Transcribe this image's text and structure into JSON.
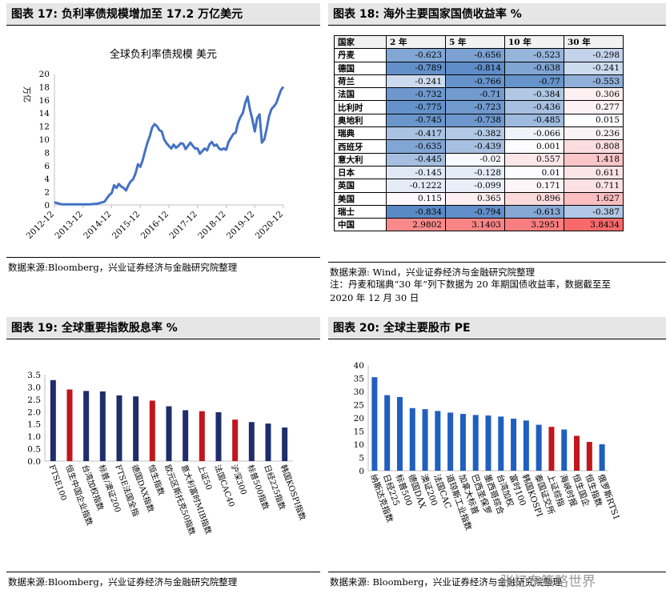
{
  "panels": {
    "p17": {
      "title": "图表 17:  负利率债规模增加至 17.2 万亿美元",
      "source": "数据来源:Bloomberg，兴业证券经济与金融研究院整理"
    },
    "p18": {
      "title": "图表 18:  海外主要国家国债收益率  %",
      "source": "数据来源: Wind，兴业证券经济与金融研究院整理",
      "note1": "注：丹麦和瑞典“30 年”列下数据为 20 年期国债收益率，数据截至至",
      "note2": "2020 年 12 月 30 日"
    },
    "p19": {
      "title": "图表 19:  全球重要指数股息率  %",
      "source": "数据来源:Bloomberg，兴业证券经济与金融研究院整理"
    },
    "p20": {
      "title": "图表 20:  全球主要股市 PE",
      "source": "数据来源: Bloomberg，兴业证券经济与金融研究院整理"
    }
  },
  "watermark": "张忆东策略世界",
  "chart_data": [
    {
      "type": "line",
      "title": "全球负利率债规模 美元",
      "ylabel": "万亿",
      "ylim": [
        0,
        20
      ],
      "yticks": [
        0,
        2,
        4,
        6,
        8,
        10,
        12,
        14,
        16,
        18,
        20
      ],
      "xticks": [
        "2012-12",
        "2013-12",
        "2014-12",
        "2015-12",
        "2016-12",
        "2017-12",
        "2018-12",
        "2019-12",
        "2020-12"
      ],
      "grid": false,
      "color": "#4472c4",
      "x": [
        "2012-12",
        "2013-03",
        "2013-06",
        "2013-09",
        "2013-12",
        "2014-03",
        "2014-06",
        "2014-09",
        "2014-10",
        "2014-11",
        "2014-12",
        "2015-01",
        "2015-02",
        "2015-03",
        "2015-04",
        "2015-05",
        "2015-06",
        "2015-07",
        "2015-08",
        "2015-09",
        "2015-10",
        "2015-11",
        "2015-12",
        "2016-01",
        "2016-02",
        "2016-03",
        "2016-04",
        "2016-05",
        "2016-06",
        "2016-07",
        "2016-08",
        "2016-09",
        "2016-10",
        "2016-11",
        "2016-12",
        "2017-01",
        "2017-02",
        "2017-03",
        "2017-04",
        "2017-05",
        "2017-06",
        "2017-07",
        "2017-08",
        "2017-09",
        "2017-10",
        "2017-11",
        "2017-12",
        "2018-01",
        "2018-02",
        "2018-03",
        "2018-04",
        "2018-05",
        "2018-06",
        "2018-07",
        "2018-08",
        "2018-09",
        "2018-10",
        "2018-11",
        "2018-12",
        "2019-01",
        "2019-02",
        "2019-03",
        "2019-04",
        "2019-05",
        "2019-06",
        "2019-07",
        "2019-08",
        "2019-09",
        "2019-10",
        "2019-11",
        "2019-12",
        "2020-01",
        "2020-02",
        "2020-03",
        "2020-04",
        "2020-05",
        "2020-06",
        "2020-07",
        "2020-08",
        "2020-09",
        "2020-10",
        "2020-11",
        "2020-12"
      ],
      "values": [
        0.4,
        0.1,
        0.1,
        0.1,
        0.1,
        0.1,
        0.2,
        0.5,
        1.0,
        1.5,
        1.8,
        3.0,
        2.6,
        3.2,
        2.8,
        2.6,
        2.2,
        3.0,
        3.6,
        3.9,
        4.8,
        6.2,
        5.8,
        6.8,
        8.2,
        9.5,
        10.5,
        11.8,
        12.3,
        12.0,
        11.4,
        11.2,
        10.0,
        9.4,
        9.0,
        8.6,
        9.2,
        8.7,
        9.0,
        9.4,
        9.3,
        8.5,
        9.0,
        9.5,
        9.0,
        8.6,
        8.6,
        7.8,
        8.2,
        8.6,
        8.3,
        9.2,
        9.6,
        9.0,
        9.2,
        8.6,
        8.4,
        8.6,
        8.4,
        9.6,
        10.2,
        10.8,
        11.0,
        12.5,
        13.4,
        14.0,
        15.5,
        16.5,
        14.5,
        13.0,
        11.2,
        13.2,
        13.8,
        9.5,
        10.0,
        11.6,
        13.5,
        14.6,
        15.0,
        15.5,
        16.5,
        17.5,
        18.0
      ]
    },
    {
      "type": "table",
      "columns": [
        "国家",
        "2 年",
        "5 年",
        "10 年",
        "30 年"
      ],
      "rows": [
        [
          "丹麦",
          "-0.623",
          "-0.656",
          "-0.523",
          "-0.298"
        ],
        [
          "德国",
          "-0.789",
          "-0.814",
          "-0.638",
          "-0.241"
        ],
        [
          "荷兰",
          "-0.241",
          "-0.766",
          "-0.77",
          "-0.553"
        ],
        [
          "法国",
          "-0.732",
          "-0.71",
          "-0.384",
          "0.306"
        ],
        [
          "比利时",
          "-0.775",
          "-0.723",
          "-0.436",
          "0.277"
        ],
        [
          "奥地利",
          "-0.745",
          "-0.738",
          "-0.485",
          "0.015"
        ],
        [
          "瑞典",
          "-0.417",
          "-0.382",
          "-0.066",
          "0.236"
        ],
        [
          "西班牙",
          "-0.635",
          "-0.439",
          "0.001",
          "0.808"
        ],
        [
          "意大利",
          "-0.445",
          "-0.02",
          "0.557",
          "1.418"
        ],
        [
          "日本",
          "-0.145",
          "-0.128",
          "0.01",
          "0.611"
        ],
        [
          "英国",
          "-0.1222",
          "-0.099",
          "0.171",
          "0.711"
        ],
        [
          "美国",
          "0.115",
          "0.365",
          "0.896",
          "1.627"
        ],
        [
          "瑞士",
          "-0.834",
          "-0.794",
          "-0.613",
          "-0.387"
        ],
        [
          "中国",
          "2.9802",
          "3.1403",
          "3.2951",
          "3.8434"
        ]
      ]
    },
    {
      "type": "bar",
      "ylim": [
        0,
        3.5
      ],
      "yticks": [
        "0.0",
        "0.5",
        "1.0",
        "1.5",
        "2.0",
        "2.5",
        "3.0",
        "3.5"
      ],
      "categories": [
        "FTSE100",
        "恒生中国企业指数",
        "台湾加权指数",
        "标普/澳证200",
        "FTSE法国全指",
        "德国DAX指数",
        "恒生指数",
        "欧元区斯托克50指数",
        "意大利富时MIB指数",
        "上证50",
        "法国CAC40",
        "沪深300",
        "标普500指数",
        "日经225指数",
        "韩国KOSPI指数"
      ],
      "values": [
        3.28,
        2.9,
        2.84,
        2.82,
        2.66,
        2.62,
        2.45,
        2.22,
        2.06,
        2.02,
        1.98,
        1.68,
        1.58,
        1.52,
        1.36
      ],
      "colors": [
        "#1f2d6b",
        "#c0161c",
        "#1f2d6b",
        "#1f2d6b",
        "#1f2d6b",
        "#1f2d6b",
        "#c0161c",
        "#1f2d6b",
        "#1f2d6b",
        "#c0161c",
        "#1f2d6b",
        "#c0161c",
        "#1f2d6b",
        "#1f2d6b",
        "#1f2d6b"
      ],
      "grid": false
    },
    {
      "type": "bar",
      "ylim": [
        0,
        40
      ],
      "yticks": [
        "0",
        "5",
        "10",
        "15",
        "20",
        "25",
        "30",
        "35",
        "40"
      ],
      "categories": [
        "纳斯达克指数",
        "日经225",
        "标普500",
        "德国DAX",
        "澳证200",
        "法国CAC",
        "道琼斯工业指数",
        "加拿大标普",
        "巴西圣保罗",
        "墨西哥综合",
        "台湾加权",
        "富时100",
        "韩国KOSPI",
        "泰国证交所",
        "上证综指",
        "海峡时报",
        "恒生国企",
        "恒生指数",
        "俄罗斯RTS1"
      ],
      "values": [
        35.4,
        28.6,
        27.9,
        23.7,
        23.3,
        22.6,
        22.0,
        21.5,
        21.1,
        20.9,
        20.5,
        19.7,
        19.0,
        17.4,
        16.6,
        15.6,
        13.2,
        10.9,
        10.0
      ],
      "colors": [
        "#1f5fbf",
        "#1f5fbf",
        "#1f5fbf",
        "#1f5fbf",
        "#1f5fbf",
        "#1f5fbf",
        "#1f5fbf",
        "#1f5fbf",
        "#1f5fbf",
        "#1f5fbf",
        "#1f5fbf",
        "#1f5fbf",
        "#1f5fbf",
        "#1f5fbf",
        "#c0161c",
        "#1f5fbf",
        "#c0161c",
        "#c0161c",
        "#1f5fbf"
      ],
      "grid": false
    }
  ]
}
